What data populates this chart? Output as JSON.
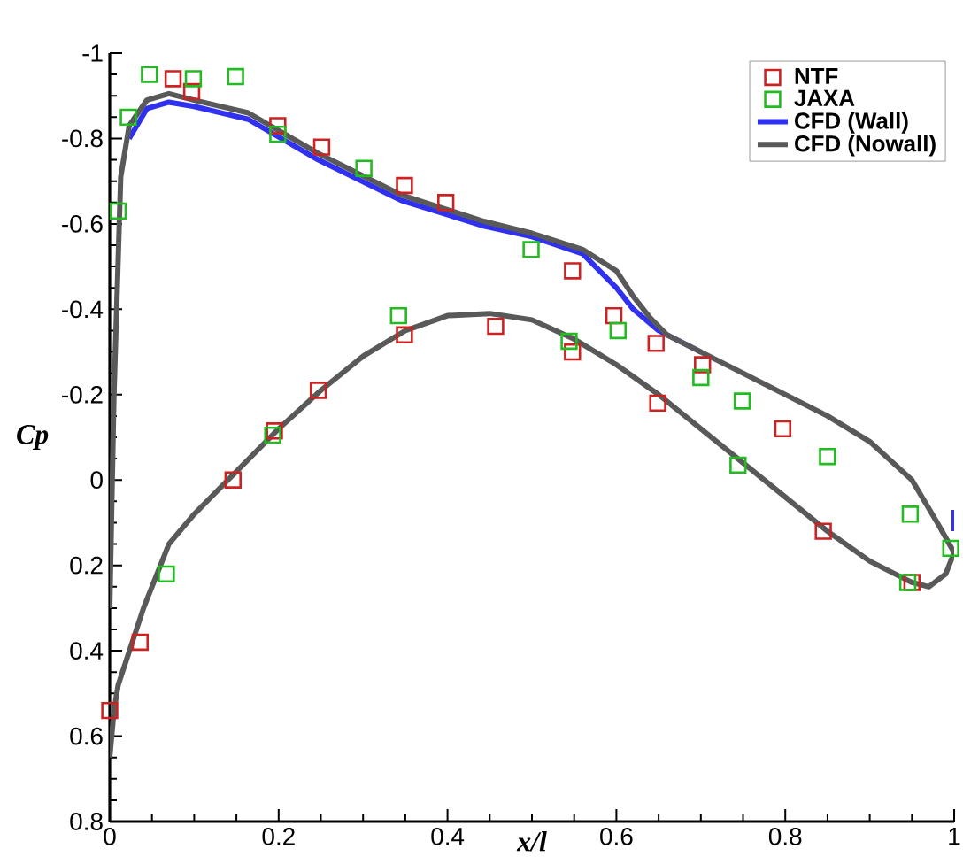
{
  "chart_data": {
    "type": "scatter",
    "xlabel": "x/l",
    "ylabel": "Cp",
    "xlim": [
      0,
      1
    ],
    "ylim": [
      0.8,
      -1
    ],
    "xticks": [
      0,
      0.2,
      0.4,
      0.6,
      0.8,
      1
    ],
    "yticks": [
      -1,
      -0.8,
      -0.6,
      -0.4,
      -0.2,
      0,
      0.2,
      0.4,
      0.6,
      0.8
    ],
    "grid": false,
    "legend": "top right",
    "series": [
      {
        "name": "NTF",
        "marker": "square",
        "color": "#cc2222",
        "x": [
          0.0,
          0.036,
          0.075,
          0.097,
          0.146,
          0.195,
          0.199,
          0.247,
          0.251,
          0.349,
          0.349,
          0.398,
          0.457,
          0.548,
          0.548,
          0.597,
          0.647,
          0.649,
          0.702,
          0.797,
          0.845,
          0.95
        ],
        "values": [
          0.54,
          0.38,
          -0.94,
          -0.91,
          0.0,
          -0.115,
          -0.83,
          -0.21,
          -0.78,
          -0.34,
          -0.69,
          -0.65,
          -0.36,
          -0.49,
          -0.3,
          -0.385,
          -0.32,
          -0.18,
          -0.27,
          -0.12,
          0.12,
          0.24
        ]
      },
      {
        "name": "JAXA",
        "marker": "square",
        "color": "#22bb22",
        "x": [
          0.01,
          0.022,
          0.047,
          0.067,
          0.099,
          0.149,
          0.193,
          0.199,
          0.301,
          0.342,
          0.499,
          0.544,
          0.602,
          0.7,
          0.744,
          0.749,
          0.85,
          0.945,
          0.948,
          0.996
        ],
        "values": [
          -0.63,
          -0.85,
          -0.95,
          0.22,
          -0.94,
          -0.945,
          -0.105,
          -0.81,
          -0.73,
          -0.385,
          -0.54,
          -0.325,
          -0.35,
          -0.24,
          -0.035,
          -0.185,
          -0.055,
          0.24,
          0.08,
          0.16
        ]
      },
      {
        "name": "CFD (Wall)",
        "type": "line",
        "marker": "none",
        "color": "#3030f0",
        "x": [
          0.023,
          0.044,
          0.07,
          0.1,
          0.164,
          0.247,
          0.345,
          0.443,
          0.5,
          0.56,
          0.6,
          0.62,
          0.65,
          0.7,
          0.85,
          1.0,
          1.0
        ],
        "values": [
          -0.8,
          -0.87,
          -0.885,
          -0.875,
          -0.845,
          -0.75,
          -0.655,
          -0.595,
          -0.57,
          -0.53,
          -0.45,
          -0.4,
          -0.35,
          -0.3,
          null,
          0.12,
          0.07
        ]
      },
      {
        "name": "CFD (Nowall)",
        "type": "line",
        "marker": "none",
        "color": "#595959",
        "x": [
          0.0,
          0.005,
          0.013,
          0.023,
          0.044,
          0.07,
          0.1,
          0.164,
          0.247,
          0.345,
          0.443,
          0.5,
          0.56,
          0.6,
          0.62,
          0.64,
          0.66,
          0.7,
          0.75,
          0.8,
          0.85,
          0.9,
          0.95,
          0.98,
          1.0
        ],
        "values": [
          0.3,
          -0.2,
          -0.71,
          -0.83,
          -0.89,
          -0.905,
          -0.89,
          -0.86,
          -0.765,
          -0.668,
          -0.606,
          -0.578,
          -0.54,
          -0.49,
          -0.43,
          -0.38,
          -0.34,
          -0.3,
          -0.25,
          -0.2,
          -0.15,
          -0.09,
          0.0,
          0.1,
          0.17
        ]
      },
      {
        "type": "line",
        "marker": "none",
        "color": "#595959",
        "x": [
          0.0,
          0.005,
          0.01,
          0.02,
          0.04,
          0.07,
          0.1,
          0.15,
          0.2,
          0.25,
          0.3,
          0.35,
          0.4,
          0.45,
          0.5,
          0.55,
          0.6,
          0.65,
          0.7,
          0.75,
          0.8,
          0.85,
          0.9,
          0.95,
          0.97,
          0.99,
          1.0
        ],
        "values": [
          0.65,
          0.54,
          0.48,
          0.42,
          0.3,
          0.15,
          0.08,
          -0.02,
          -0.12,
          -0.21,
          -0.29,
          -0.35,
          -0.385,
          -0.39,
          -0.375,
          -0.33,
          -0.27,
          -0.2,
          -0.12,
          -0.04,
          0.04,
          0.12,
          0.19,
          0.24,
          0.25,
          0.22,
          0.17
        ]
      }
    ]
  }
}
